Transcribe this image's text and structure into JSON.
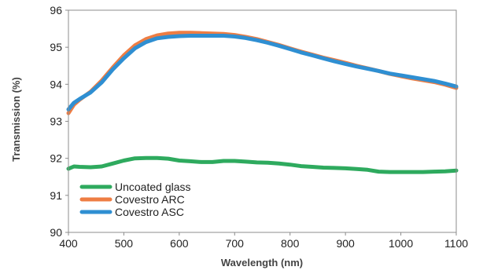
{
  "chart_data": {
    "type": "line",
    "title": "",
    "xlabel": "Wavelength (nm)",
    "ylabel": "Transmission (%)",
    "xlim": [
      400,
      1100
    ],
    "ylim": [
      90,
      96
    ],
    "xticks": [
      400,
      500,
      600,
      700,
      800,
      900,
      1000,
      1100
    ],
    "yticks": [
      90,
      91,
      92,
      93,
      94,
      95,
      96
    ],
    "x_tick_labels": [
      "400",
      "500",
      "600",
      "700",
      "800",
      "900",
      "1000",
      "1100"
    ],
    "y_tick_labels": [
      "90",
      "91",
      "92",
      "93",
      "94",
      "95",
      "96"
    ],
    "grid": false,
    "legend_position": "lower-left",
    "series": [
      {
        "name": "Uncoated glass",
        "color": "#2eaa5e",
        "x": [
          400,
          410,
          420,
          440,
          460,
          480,
          500,
          520,
          540,
          560,
          580,
          600,
          620,
          640,
          660,
          680,
          700,
          720,
          740,
          760,
          780,
          800,
          820,
          840,
          860,
          880,
          900,
          920,
          940,
          960,
          980,
          1000,
          1020,
          1040,
          1060,
          1080,
          1100
        ],
        "y": [
          91.72,
          91.78,
          91.77,
          91.76,
          91.78,
          91.86,
          91.94,
          92.0,
          92.01,
          92.01,
          91.99,
          91.94,
          91.92,
          91.9,
          91.9,
          91.93,
          91.93,
          91.91,
          91.89,
          91.88,
          91.86,
          91.83,
          91.79,
          91.77,
          91.75,
          91.74,
          91.73,
          91.71,
          91.69,
          91.64,
          91.63,
          91.63,
          91.63,
          91.63,
          91.64,
          91.65,
          91.67
        ]
      },
      {
        "name": "Covestro ARC",
        "color": "#ee7d43",
        "x": [
          400,
          410,
          420,
          440,
          460,
          480,
          500,
          520,
          540,
          560,
          580,
          600,
          620,
          640,
          660,
          680,
          700,
          720,
          740,
          760,
          780,
          800,
          820,
          840,
          860,
          880,
          900,
          920,
          940,
          960,
          980,
          1000,
          1020,
          1040,
          1060,
          1080,
          1100
        ],
        "y": [
          93.22,
          93.45,
          93.58,
          93.8,
          94.1,
          94.45,
          94.78,
          95.05,
          95.22,
          95.32,
          95.37,
          95.39,
          95.39,
          95.38,
          95.37,
          95.36,
          95.33,
          95.28,
          95.22,
          95.14,
          95.06,
          94.97,
          94.88,
          94.8,
          94.72,
          94.65,
          94.58,
          94.5,
          94.43,
          94.36,
          94.28,
          94.22,
          94.16,
          94.11,
          94.06,
          93.99,
          93.9
        ]
      },
      {
        "name": "Covestro ASC",
        "color": "#2f8fd2",
        "x": [
          400,
          410,
          420,
          440,
          460,
          480,
          500,
          520,
          540,
          560,
          580,
          600,
          620,
          640,
          660,
          680,
          700,
          720,
          740,
          760,
          780,
          800,
          820,
          840,
          860,
          880,
          900,
          920,
          940,
          960,
          980,
          1000,
          1020,
          1040,
          1060,
          1080,
          1100
        ],
        "y": [
          93.32,
          93.5,
          93.6,
          93.78,
          94.05,
          94.4,
          94.7,
          94.97,
          95.14,
          95.24,
          95.28,
          95.3,
          95.31,
          95.31,
          95.31,
          95.31,
          95.29,
          95.25,
          95.19,
          95.12,
          95.04,
          94.95,
          94.86,
          94.78,
          94.7,
          94.62,
          94.55,
          94.48,
          94.42,
          94.36,
          94.29,
          94.24,
          94.19,
          94.14,
          94.09,
          94.02,
          93.94
        ]
      }
    ]
  }
}
